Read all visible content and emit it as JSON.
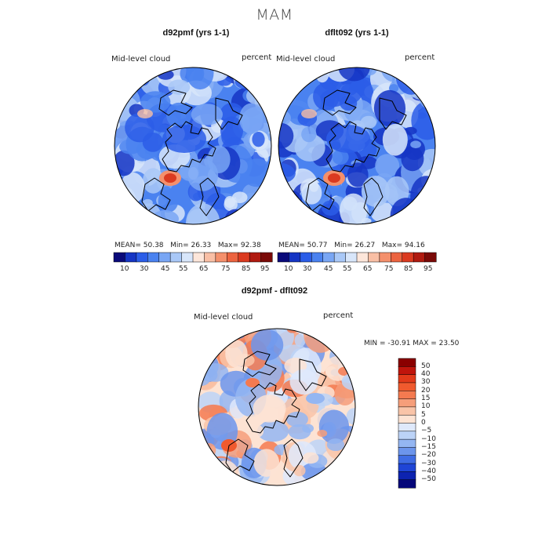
{
  "page": {
    "title": "MAM"
  },
  "panels": [
    {
      "id": "p1",
      "title": "d92pmf (yrs 1-1)",
      "variable": "Mid-level cloud",
      "units": "percent",
      "stats": {
        "mean_label": "MEAN=",
        "mean": "50.38",
        "min_label": "Min=",
        "min": "26.33",
        "max_label": "Max=",
        "max": "92.38"
      }
    },
    {
      "id": "p2",
      "title": "dflt092 (yrs 1-1)",
      "variable": "Mid-level cloud",
      "units": "percent",
      "stats": {
        "mean_label": "MEAN=",
        "mean": "50.77",
        "min_label": "Min=",
        "min": "26.27",
        "max_label": "Max=",
        "max": "94.16"
      }
    },
    {
      "id": "p3",
      "title": "d92pmf - dflt092",
      "variable": "Mid-level cloud",
      "units": "percent",
      "stats_text": "MIN = -30.91 MAX =  23.50"
    }
  ],
  "colorbars": {
    "abs": {
      "ticks": [
        "10",
        "30",
        "45",
        "55",
        "65",
        "75",
        "85",
        "95"
      ],
      "colors": [
        "#0a0a7a",
        "#1535c4",
        "#2b5de8",
        "#4a82f0",
        "#79a6f4",
        "#a9c8f7",
        "#d8e6fa",
        "#fde6da",
        "#f9bfa5",
        "#f4906c",
        "#ec6440",
        "#db3a20",
        "#b01a10",
        "#7a0a08"
      ]
    },
    "diff": {
      "ticks": [
        "50",
        "40",
        "30",
        "20",
        "15",
        "10",
        "5",
        "0",
        "−5",
        "−10",
        "−15",
        "−20",
        "−30",
        "−40",
        "−50"
      ],
      "colors": [
        "#8a0000",
        "#c0150c",
        "#e23a1a",
        "#f05a2e",
        "#f47a50",
        "#f69e7a",
        "#f9c4a8",
        "#fde3d3",
        "#dfe9fb",
        "#bcd3f7",
        "#94b6f2",
        "#6c95ec",
        "#3f6ce4",
        "#1f45d6",
        "#0d23b0",
        "#05077a"
      ]
    }
  },
  "chart_data": {
    "type": "heatmap",
    "title": "MAM",
    "projection": "north polar stereographic",
    "maps": [
      {
        "name": "d92pmf (yrs 1-1)",
        "variable": "Mid-level cloud",
        "units": "percent",
        "mean": 50.38,
        "min": 26.33,
        "max": 92.38,
        "levels": [
          10,
          30,
          45,
          55,
          65,
          75,
          85,
          95
        ]
      },
      {
        "name": "dflt092 (yrs 1-1)",
        "variable": "Mid-level cloud",
        "units": "percent",
        "mean": 50.77,
        "min": 26.27,
        "max": 94.16,
        "levels": [
          10,
          30,
          45,
          55,
          65,
          75,
          85,
          95
        ]
      },
      {
        "name": "d92pmf - dflt092",
        "variable": "Mid-level cloud",
        "units": "percent",
        "min": -30.91,
        "max": 23.5,
        "levels": [
          -50,
          -40,
          -30,
          -20,
          -15,
          -10,
          -5,
          0,
          5,
          10,
          15,
          20,
          30,
          40,
          50
        ]
      }
    ]
  }
}
